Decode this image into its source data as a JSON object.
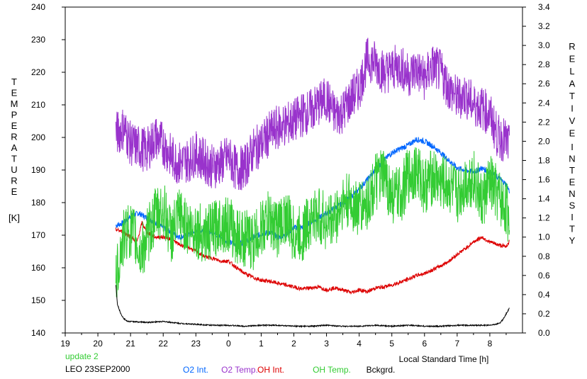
{
  "chart_data": {
    "type": "line",
    "xlabel": "Local Standard Time [h]",
    "x_ticks": [
      "19",
      "20",
      "21",
      "22",
      "23",
      "0",
      "1",
      "2",
      "3",
      "4",
      "5",
      "6",
      "7",
      "8"
    ],
    "xlim": [
      19,
      33
    ],
    "ylabel_left_letters": [
      "T",
      "E",
      "M",
      "P",
      "E",
      "R",
      "A",
      "T",
      "U",
      "R",
      "E"
    ],
    "ylabel_left_unit": "[K]",
    "ylim_left": [
      140,
      240
    ],
    "y_ticks_left": [
      "140",
      "150",
      "160",
      "170",
      "180",
      "190",
      "200",
      "210",
      "220",
      "230",
      "240"
    ],
    "ylabel_right_words": [
      [
        "R",
        "E",
        "L",
        "A",
        "T",
        "I",
        "V",
        "E"
      ],
      [
        "I",
        "N",
        "T",
        "E",
        "N",
        "S",
        "I",
        "T",
        "Y"
      ]
    ],
    "ylim_right": [
      0,
      3.4
    ],
    "y_ticks_right": [
      "0.0",
      "0.2",
      "0.4",
      "0.6",
      "0.8",
      "1.0",
      "1.2",
      "1.4",
      "1.6",
      "1.8",
      "2.0",
      "2.2",
      "2.4",
      "2.6",
      "2.8",
      "3.0",
      "3.2",
      "3.4"
    ],
    "grid": false,
    "series": [
      {
        "name": "O2 Int.",
        "color": "#0066ff",
        "axis": "right",
        "x": [
          20.55,
          20.8,
          21.0,
          21.25,
          21.5,
          21.75,
          22.0,
          22.25,
          22.5,
          22.75,
          23.0,
          23.25,
          23.5,
          23.75,
          24.0,
          24.25,
          24.5,
          24.75,
          25.0,
          25.25,
          25.5,
          25.75,
          26.0,
          26.25,
          26.5,
          26.75,
          27.0,
          27.25,
          27.5,
          27.75,
          28.0,
          28.25,
          28.5,
          28.75,
          29.0,
          29.25,
          29.5,
          29.75,
          30.0,
          30.25,
          30.5,
          30.75,
          31.0,
          31.25,
          31.5,
          31.75,
          32.0,
          32.25,
          32.5,
          32.6
        ],
        "y": [
          1.12,
          1.15,
          1.22,
          1.25,
          1.2,
          1.15,
          1.1,
          1.05,
          1.0,
          1.02,
          1.05,
          1.08,
          1.05,
          1.0,
          0.95,
          0.92,
          0.95,
          1.0,
          1.03,
          1.05,
          1.0,
          1.02,
          1.1,
          1.1,
          1.15,
          1.2,
          1.25,
          1.3,
          1.35,
          1.42,
          1.5,
          1.6,
          1.7,
          1.8,
          1.88,
          1.92,
          1.96,
          2.02,
          2.0,
          1.95,
          1.88,
          1.8,
          1.72,
          1.7,
          1.68,
          1.72,
          1.68,
          1.62,
          1.55,
          1.48
        ],
        "noise": 0.03
      },
      {
        "name": "O2 Temp.",
        "color": "#9933cc",
        "axis": "left",
        "x": [
          20.55,
          20.8,
          21.0,
          21.25,
          21.5,
          21.75,
          22.0,
          22.25,
          22.5,
          22.75,
          23.0,
          23.25,
          23.5,
          23.75,
          24.0,
          24.25,
          24.5,
          24.75,
          25.0,
          25.25,
          25.5,
          25.75,
          26.0,
          26.25,
          26.5,
          26.75,
          27.0,
          27.25,
          27.5,
          27.75,
          28.0,
          28.25,
          28.5,
          28.75,
          29.0,
          29.25,
          29.5,
          29.75,
          30.0,
          30.25,
          30.5,
          30.75,
          31.0,
          31.25,
          31.5,
          31.75,
          32.0,
          32.25,
          32.5,
          32.6
        ],
        "y": [
          201,
          203,
          198,
          197,
          196,
          200,
          198,
          194,
          192,
          193,
          195,
          193,
          191,
          192,
          194,
          190,
          191,
          196,
          198,
          201,
          203,
          204,
          205,
          207,
          208,
          210,
          212,
          207,
          208,
          212,
          215,
          224,
          223,
          220,
          221,
          222,
          219,
          221,
          218,
          222,
          220,
          215,
          212,
          213,
          210,
          209,
          207,
          200,
          199,
          197
        ],
        "noise": 7
      },
      {
        "name": "OH Int.",
        "color": "#dd0000",
        "axis": "right",
        "x": [
          20.55,
          20.8,
          21.0,
          21.2,
          21.35,
          21.5,
          21.75,
          22.0,
          22.25,
          22.5,
          22.75,
          23.0,
          23.25,
          23.5,
          23.75,
          24.0,
          24.25,
          24.5,
          24.75,
          25.0,
          25.25,
          25.5,
          25.75,
          26.0,
          26.25,
          26.5,
          26.75,
          27.0,
          27.25,
          27.5,
          27.75,
          28.0,
          28.25,
          28.5,
          28.75,
          29.0,
          29.25,
          29.5,
          29.75,
          30.0,
          30.25,
          30.5,
          30.75,
          31.0,
          31.25,
          31.5,
          31.75,
          32.0,
          32.25,
          32.5,
          32.6
        ],
        "y": [
          1.08,
          1.05,
          1.0,
          0.95,
          1.15,
          1.05,
          1.0,
          1.0,
          0.98,
          0.92,
          0.9,
          0.85,
          0.8,
          0.78,
          0.75,
          0.75,
          0.68,
          0.62,
          0.58,
          0.55,
          0.54,
          0.52,
          0.5,
          0.48,
          0.46,
          0.47,
          0.48,
          0.45,
          0.47,
          0.45,
          0.42,
          0.45,
          0.43,
          0.47,
          0.48,
          0.5,
          0.53,
          0.56,
          0.6,
          0.62,
          0.66,
          0.7,
          0.75,
          0.82,
          0.88,
          0.95,
          1.0,
          0.95,
          0.92,
          0.9,
          0.96
        ],
        "noise": 0.02
      },
      {
        "name": "OH Temp.",
        "color": "#33cc33",
        "axis": "left",
        "x": [
          20.55,
          20.7,
          20.9,
          21.1,
          21.3,
          21.5,
          21.75,
          22.0,
          22.25,
          22.5,
          22.75,
          23.0,
          23.25,
          23.5,
          23.75,
          24.0,
          24.25,
          24.5,
          24.75,
          25.0,
          25.25,
          25.5,
          25.75,
          26.0,
          26.25,
          26.5,
          26.75,
          27.0,
          27.25,
          27.5,
          27.75,
          28.0,
          28.25,
          28.5,
          28.75,
          29.0,
          29.25,
          29.5,
          29.75,
          30.0,
          30.25,
          30.5,
          30.75,
          31.0,
          31.25,
          31.5,
          31.75,
          32.0,
          32.25,
          32.5,
          32.6
        ],
        "y": [
          155,
          166,
          172,
          170,
          164,
          169,
          176,
          178,
          170,
          176,
          172,
          172,
          170,
          171,
          174,
          173,
          170,
          169,
          168,
          172,
          175,
          172,
          176,
          170,
          170,
          175,
          176,
          174,
          175,
          180,
          180,
          178,
          180,
          186,
          188,
          182,
          182,
          188,
          190,
          185,
          188,
          186,
          185,
          182,
          186,
          188,
          180,
          186,
          182,
          178,
          176
        ],
        "noise": 9
      },
      {
        "name": "Bckgrd.",
        "color": "#000000",
        "axis": "right",
        "x": [
          20.55,
          20.6,
          20.7,
          20.8,
          20.9,
          21.0,
          21.5,
          22.0,
          22.5,
          23.0,
          23.5,
          24.0,
          24.5,
          25.0,
          25.5,
          26.0,
          26.5,
          27.0,
          27.5,
          28.0,
          28.5,
          29.0,
          29.5,
          30.0,
          30.5,
          31.0,
          31.5,
          32.0,
          32.3,
          32.4,
          32.5,
          32.6
        ],
        "y": [
          0.5,
          0.3,
          0.2,
          0.15,
          0.12,
          0.12,
          0.11,
          0.12,
          0.1,
          0.09,
          0.08,
          0.08,
          0.07,
          0.08,
          0.08,
          0.07,
          0.07,
          0.08,
          0.07,
          0.07,
          0.08,
          0.07,
          0.08,
          0.07,
          0.07,
          0.08,
          0.08,
          0.08,
          0.1,
          0.14,
          0.2,
          0.26
        ],
        "noise": 0.006
      }
    ],
    "annotations": {
      "update": "update 2",
      "station": "LEO 23SEP2000"
    }
  },
  "colors": {
    "update": "#33cc33"
  }
}
